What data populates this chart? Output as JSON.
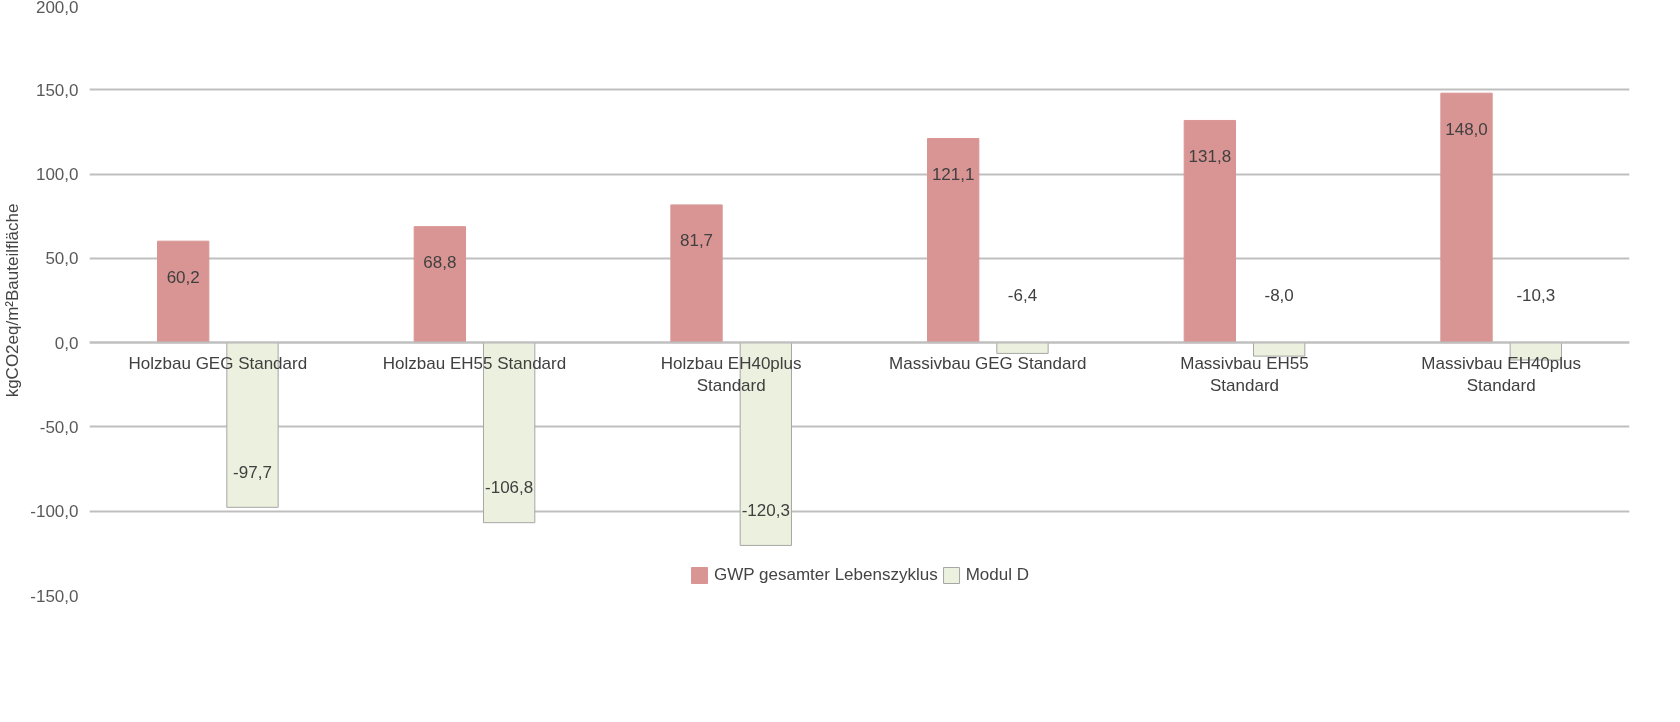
{
  "chart_data": {
    "type": "bar",
    "ylabel": "kgCO2eq/m²Bauteilfläche",
    "categories": [
      "Holzbau GEG Standard",
      "Holzbau EH55 Standard",
      "Holzbau EH40plus Standard",
      "Massivbau GEG Standard",
      "Massivbau EH55 Standard",
      "Massivbau EH40plus Standard"
    ],
    "series": [
      {
        "name": "GWP gesamter Lebenszyklus",
        "color": "#d99594",
        "values": [
          60.2,
          68.8,
          81.7,
          121.1,
          131.8,
          148.0
        ],
        "value_labels": [
          "60,2",
          "68,8",
          "81,7",
          "121,1",
          "131,8",
          "148,0"
        ]
      },
      {
        "name": "Modul D",
        "color": "#ebf1de",
        "values": [
          -97.7,
          -106.8,
          -120.3,
          -6.4,
          -8.0,
          -10.3
        ],
        "value_labels": [
          "-97,7",
          "-106,8",
          "-120,3",
          "-6,4",
          "-8,0",
          "-10,3"
        ]
      }
    ],
    "ylim": [
      -150,
      200
    ],
    "yticks": [
      {
        "value": -150,
        "label": "-150,0"
      },
      {
        "value": -100,
        "label": "-100,0"
      },
      {
        "value": -50,
        "label": "-50,0"
      },
      {
        "value": 0,
        "label": "0,0"
      },
      {
        "value": 50,
        "label": "50,0"
      },
      {
        "value": 100,
        "label": "100,0"
      },
      {
        "value": 150,
        "label": "150,0"
      },
      {
        "value": 200,
        "label": "200,0"
      }
    ],
    "grid": "y",
    "legend": "bottom"
  }
}
